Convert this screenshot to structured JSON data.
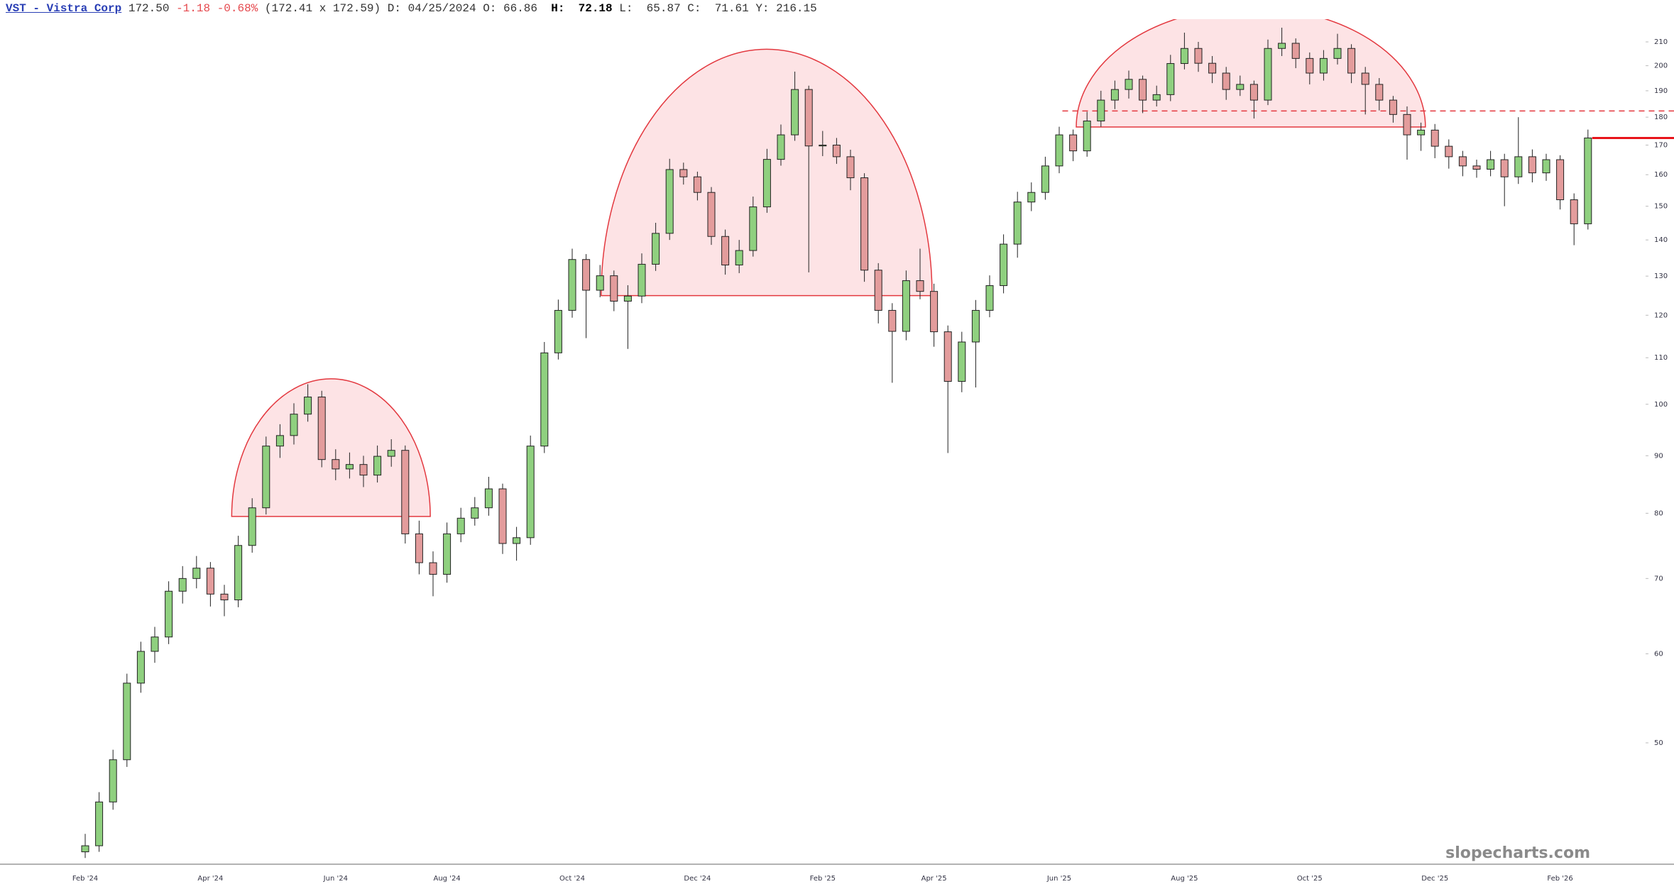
{
  "chart_data": {
    "type": "candlestick",
    "header": {
      "symbol": "VST - Vistra Corp",
      "change": "-1.18",
      "change_pct": "-0.68%",
      "bid_ask": "(172.41 x 172.59)",
      "date_label": "D:",
      "date": "04/25/2024",
      "open_label": "O:",
      "open": "66.86",
      "high_label": "H:",
      "high": "72.18",
      "low_label": "L:",
      "low": "65.87",
      "close_label": "C:",
      "close": "71.61",
      "year_high_label": "Y:",
      "year_high": "216.15"
    },
    "last_price": {
      "value": 172.5,
      "label": "172.50"
    },
    "watermark": "slopecharts.com",
    "up_color": "#8fd07f",
    "down_color": "#e39c9c",
    "last_line_color": "#e8141b",
    "log_scale": true,
    "ylim": [
      39,
      220
    ],
    "yticks": [
      50,
      60,
      70,
      80,
      90,
      100,
      110,
      120,
      130,
      140,
      150,
      160,
      170,
      180,
      190,
      200,
      210
    ],
    "categories": [
      "Feb '24",
      null,
      null,
      null,
      null,
      null,
      null,
      null,
      null,
      "Apr '24",
      null,
      null,
      null,
      null,
      null,
      null,
      null,
      null,
      "Jun '24",
      null,
      null,
      null,
      null,
      null,
      null,
      null,
      "Aug '24",
      null,
      null,
      null,
      null,
      null,
      null,
      null,
      null,
      "Oct '24",
      null,
      null,
      null,
      null,
      null,
      null,
      null,
      null,
      "Dec '24",
      null,
      null,
      null,
      null,
      null,
      null,
      null,
      null,
      "Feb '25",
      null,
      null,
      null,
      null,
      null,
      null,
      null,
      "Apr '25",
      null,
      null,
      null,
      null,
      null,
      null,
      null,
      null,
      "Jun '25",
      null,
      null,
      null,
      null,
      null,
      null,
      null,
      null,
      "Aug '25",
      null,
      null,
      null,
      null,
      null,
      null,
      null,
      null,
      "Oct '25",
      null,
      null,
      null,
      null,
      null,
      null,
      null,
      null,
      "Dec '25",
      null,
      null,
      null,
      null,
      null,
      null,
      null,
      null,
      "Feb '26",
      null,
      null
    ],
    "open": [
      40.0,
      40.5,
      44.3,
      48.3,
      56.5,
      60.3,
      62.1,
      68.2,
      70.0,
      71.5,
      67.8,
      67.0,
      74.9,
      80.9,
      91.8,
      93.8,
      98.0,
      101.5,
      89.3,
      87.6,
      88.4,
      86.5,
      89.9,
      91.0,
      76.7,
      72.3,
      70.6,
      76.7,
      79.2,
      80.9,
      84.1,
      75.2,
      76.1,
      91.8,
      111.1,
      121.2,
      134.5,
      126.3,
      130.1,
      123.5,
      124.8,
      133.2,
      141.9,
      161.7,
      159.3,
      154.3,
      141.0,
      133.0,
      137.0,
      149.8,
      165.1,
      173.6,
      190.5,
      169.7,
      170.0,
      166.0,
      159.0,
      131.6,
      121.2,
      116.1,
      128.8,
      126.0,
      116.0,
      104.8,
      113.6,
      121.2,
      127.5,
      138.8,
      151.3,
      154.3,
      162.9,
      173.6,
      168.0,
      178.6,
      186.4,
      190.5,
      194.5,
      186.4,
      188.5,
      200.9,
      207.2,
      201.0,
      197.0,
      190.5,
      192.5,
      186.4,
      207.2,
      209.4,
      203.0,
      197.0,
      203.0,
      207.2,
      197.0,
      192.5,
      186.4,
      181.0,
      173.6,
      175.3,
      169.6,
      166.0,
      162.9,
      161.8,
      165.0,
      159.3,
      166.0,
      160.6,
      165.0,
      152.0,
      144.7
    ],
    "high": [
      41.5,
      45.2,
      49.3,
      57.6,
      61.5,
      63.4,
      69.6,
      71.8,
      73.3,
      72.4,
      69.1,
      76.4,
      82.5,
      93.6,
      96.0,
      100.2,
      104.2,
      102.8,
      91.2,
      90.6,
      90.0,
      91.9,
      93.1,
      91.9,
      78.8,
      74.0,
      78.5,
      80.9,
      82.7,
      86.2,
      85.0,
      77.8,
      93.8,
      113.6,
      123.9,
      137.5,
      136.0,
      133.0,
      131.5,
      127.6,
      136.2,
      145.0,
      165.3,
      164.0,
      161.0,
      156.0,
      143.0,
      140.0,
      153.0,
      168.7,
      177.3,
      197.6,
      192.0,
      175.0,
      172.5,
      168.4,
      160.5,
      133.5,
      123.0,
      131.5,
      137.5,
      128.0,
      117.5,
      116.0,
      123.8,
      130.2,
      141.6,
      154.5,
      157.5,
      166.0,
      176.5,
      175.5,
      182.0,
      190.0,
      194.0,
      198.0,
      196.0,
      192.0,
      204.5,
      214.0,
      210.0,
      204.0,
      199.5,
      196.0,
      194.0,
      211.0,
      216.2,
      211.5,
      205.5,
      206.5,
      213.5,
      209.0,
      199.5,
      195.0,
      188.0,
      184.0,
      178.0,
      177.5,
      172.0,
      168.0,
      165.0,
      168.0,
      167.0,
      180.0,
      168.5,
      167.0,
      166.5,
      154.0,
      175.5
    ],
    "low": [
      39.5,
      40.0,
      43.6,
      47.6,
      55.4,
      58.9,
      61.2,
      66.5,
      68.6,
      66.1,
      64.8,
      66.0,
      73.8,
      79.8,
      89.6,
      92.1,
      96.5,
      87.9,
      85.6,
      85.9,
      84.4,
      85.2,
      88.0,
      75.2,
      70.6,
      67.5,
      69.4,
      75.4,
      78.0,
      79.6,
      73.6,
      72.6,
      75.0,
      90.5,
      109.6,
      119.4,
      114.5,
      124.5,
      121.0,
      112.0,
      123.0,
      131.4,
      140.0,
      156.8,
      151.8,
      138.6,
      130.4,
      130.8,
      135.3,
      148.0,
      163.0,
      171.5,
      131.0,
      166.2,
      163.6,
      155.0,
      128.5,
      118.0,
      104.5,
      114.0,
      124.0,
      112.5,
      90.5,
      102.5,
      103.5,
      119.5,
      125.5,
      135.0,
      148.5,
      152.0,
      160.5,
      164.5,
      166.0,
      176.5,
      183.0,
      187.0,
      181.5,
      184.0,
      186.0,
      198.5,
      197.5,
      193.0,
      186.5,
      188.0,
      179.5,
      184.5,
      204.0,
      199.0,
      192.5,
      194.0,
      200.5,
      193.0,
      181.0,
      182.5,
      178.0,
      165.0,
      168.0,
      165.5,
      162.0,
      159.5,
      159.0,
      159.5,
      150.0,
      157.0,
      157.5,
      158.0,
      149.0,
      138.5,
      143.0
    ],
    "close": [
      40.5,
      44.3,
      48.3,
      56.5,
      60.3,
      62.1,
      68.2,
      70.0,
      71.5,
      67.8,
      67.0,
      74.9,
      80.9,
      91.8,
      93.8,
      98.0,
      101.5,
      89.3,
      87.6,
      88.4,
      86.5,
      89.9,
      91.0,
      76.7,
      72.3,
      70.6,
      76.7,
      79.2,
      80.9,
      84.1,
      75.2,
      76.1,
      91.8,
      111.1,
      121.2,
      134.5,
      126.3,
      130.1,
      123.5,
      124.8,
      133.2,
      141.9,
      161.7,
      159.3,
      154.3,
      141.0,
      133.0,
      137.0,
      149.8,
      165.1,
      173.6,
      190.5,
      169.7,
      170.0,
      166.0,
      159.0,
      131.6,
      121.2,
      116.1,
      128.8,
      126.0,
      116.0,
      104.8,
      113.6,
      121.2,
      127.5,
      138.8,
      151.3,
      154.3,
      162.9,
      173.6,
      168.0,
      178.6,
      186.4,
      190.5,
      194.5,
      186.4,
      188.5,
      200.9,
      207.2,
      201.0,
      197.0,
      190.5,
      192.5,
      186.4,
      207.2,
      209.4,
      203.0,
      197.0,
      203.0,
      207.2,
      197.0,
      192.5,
      186.4,
      181.0,
      173.6,
      175.3,
      169.6,
      166.0,
      162.9,
      161.8,
      165.0,
      159.3,
      166.0,
      160.6,
      165.0,
      152.0,
      144.7,
      172.5
    ]
  }
}
